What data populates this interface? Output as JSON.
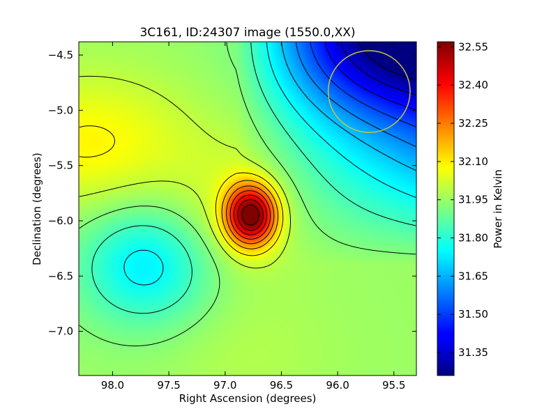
{
  "chart_data": {
    "type": "heatmap",
    "title": "3C161, ID:24307 image (1550.0,XX)",
    "xlabel": "Right Ascension (degrees)",
    "ylabel": "Declination (degrees)",
    "colorbar_label": "Power in Kelvin",
    "colormap": "jet",
    "xlim": [
      98.3,
      95.3
    ],
    "ylim": [
      -7.4,
      -4.38
    ],
    "x_ticks": [
      98.0,
      97.5,
      97.0,
      96.5,
      96.0,
      95.5
    ],
    "x_tick_labels": [
      "98.0",
      "97.5",
      "97.0",
      "96.5",
      "96.0",
      "95.5"
    ],
    "y_ticks": [
      -4.5,
      -5.0,
      -5.5,
      -6.0,
      -6.5,
      -7.0
    ],
    "y_tick_labels": [
      "−4.5",
      "−5.0",
      "−5.5",
      "−6.0",
      "−6.5",
      "−7.0"
    ],
    "color_range": [
      31.26,
      32.57
    ],
    "colorbar_ticks": [
      31.35,
      31.5,
      31.65,
      31.8,
      31.95,
      32.1,
      32.25,
      32.4,
      32.55
    ],
    "colorbar_tick_labels": [
      "31.35",
      "31.50",
      "31.65",
      "31.80",
      "31.95",
      "32.10",
      "32.25",
      "32.40",
      "32.55"
    ],
    "contours": true,
    "features": [
      {
        "kind": "peak",
        "ra": 96.77,
        "dec": -5.95,
        "value": 32.55
      },
      {
        "kind": "local_min",
        "ra": 97.63,
        "dec": -6.28,
        "value": 31.76
      },
      {
        "kind": "trough",
        "ra": 95.6,
        "dec": -4.5,
        "value": 31.26
      }
    ],
    "beam_circle": {
      "ra": 95.72,
      "dec": -4.83,
      "radius_deg": 0.37,
      "color": "#c8c83c"
    }
  }
}
